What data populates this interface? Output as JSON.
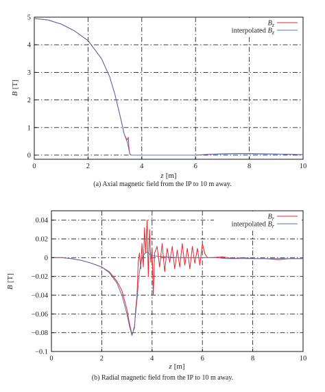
{
  "chart_data": [
    {
      "type": "line",
      "xlabel": "z [m]",
      "xlabel_var": "z",
      "xlabel_unit": "[m]",
      "ylabel": "B [T]",
      "ylabel_var": "B",
      "ylabel_unit": "[T]",
      "xlim": [
        0,
        10
      ],
      "ylim": [
        -0.15,
        5.0
      ],
      "x_ticks": [
        "0",
        "2",
        "4",
        "6",
        "8",
        "10"
      ],
      "y_ticks": [
        "0",
        "1",
        "2",
        "3",
        "4",
        "5"
      ],
      "y_tick_values": [
        0,
        1,
        2,
        3,
        4,
        5
      ],
      "grid": true,
      "legend_position": "top-right",
      "caption": "(a) Axial magnetic field from the IP to 10 m away.",
      "series": [
        {
          "name": "B_z",
          "legend_prefix": "",
          "legend_var": "B",
          "legend_sub": "z",
          "color": "#e8232a",
          "x": [
            0,
            0.5,
            1.0,
            1.5,
            2.0,
            2.5,
            2.8,
            3.0,
            3.2,
            3.35,
            3.45,
            3.5,
            3.52,
            3.55,
            3.6,
            3.7,
            4,
            5,
            6,
            6.5,
            7,
            7.5,
            8,
            8.5,
            9,
            9.5,
            10
          ],
          "y": [
            4.95,
            4.9,
            4.75,
            4.5,
            4.15,
            3.5,
            2.85,
            2.2,
            1.4,
            0.75,
            0.55,
            0.65,
            0.3,
            0.05,
            0.0,
            0.0,
            0.0,
            0.0,
            0.0,
            0.03,
            0.05,
            0.06,
            0.06,
            0.05,
            0.04,
            0.03,
            0.02
          ]
        },
        {
          "name": "interpolated B_z",
          "legend_prefix": "interpolated",
          "legend_var": "B",
          "legend_sub": "z",
          "color": "#5670b5",
          "x": [
            0,
            0.5,
            1.0,
            1.5,
            2.0,
            2.5,
            2.8,
            3.0,
            3.2,
            3.35,
            3.45,
            3.5,
            3.55,
            3.6,
            3.7,
            4,
            5,
            6,
            6.5,
            7,
            7.5,
            8,
            8.5,
            9,
            9.5,
            10
          ],
          "y": [
            4.95,
            4.9,
            4.75,
            4.5,
            4.15,
            3.5,
            2.85,
            2.2,
            1.4,
            0.75,
            0.5,
            0.3,
            0.05,
            0.0,
            0.0,
            0.0,
            0.0,
            0.0,
            0.03,
            0.04,
            0.05,
            0.05,
            0.04,
            0.04,
            0.03,
            0.02
          ]
        }
      ]
    },
    {
      "type": "line",
      "xlabel": "z [m]",
      "xlabel_var": "z",
      "xlabel_unit": "[m]",
      "ylabel": "B [T]",
      "ylabel_var": "B",
      "ylabel_unit": "[T]",
      "xlim": [
        0,
        10
      ],
      "ylim": [
        -0.1,
        0.05
      ],
      "x_ticks": [
        "0",
        "2",
        "4",
        "6",
        "8",
        "10"
      ],
      "y_ticks": [
        "0.04",
        "0.02",
        "0",
        "−0.02",
        "−0.04",
        "−0.06",
        "−0.08",
        "−0.1"
      ],
      "y_tick_values": [
        0.04,
        0.02,
        0,
        -0.02,
        -0.04,
        -0.06,
        -0.08,
        -0.1
      ],
      "grid": true,
      "legend_position": "top-right",
      "caption": "(b) Radial magnetic field from the IP to 10 m away.",
      "series": [
        {
          "name": "B_r",
          "legend_prefix": "",
          "legend_var": "B",
          "legend_sub": "r",
          "color": "#e8232a",
          "x": [
            0,
            0.4,
            0.8,
            1.2,
            1.6,
            2.0,
            2.3,
            2.6,
            2.8,
            3.0,
            3.1,
            3.2,
            3.3,
            3.35,
            3.4,
            3.45,
            3.5,
            3.55,
            3.6,
            3.65,
            3.7,
            3.75,
            3.8,
            3.85,
            3.9,
            3.95,
            4.0,
            4.05,
            4.1,
            4.2,
            4.3,
            4.4,
            4.5,
            4.6,
            4.7,
            4.8,
            4.9,
            5.0,
            5.1,
            5.2,
            5.3,
            5.4,
            5.5,
            5.6,
            5.7,
            5.8,
            5.9,
            6.0,
            6.1,
            6.2,
            6.4,
            6.8,
            7.2,
            7.6,
            8.0,
            8.5,
            9.0,
            9.5,
            10.0
          ],
          "y": [
            0.0,
            0.0,
            -0.001,
            -0.003,
            -0.006,
            -0.01,
            -0.015,
            -0.025,
            -0.035,
            -0.055,
            -0.07,
            -0.082,
            -0.075,
            -0.055,
            -0.04,
            -0.005,
            0.005,
            -0.012,
            0.015,
            -0.01,
            0.032,
            0.005,
            0.04,
            -0.02,
            0.03,
            -0.005,
            0.01,
            -0.04,
            0.005,
            0.012,
            -0.01,
            0.015,
            -0.015,
            0.01,
            -0.005,
            0.012,
            -0.012,
            0.008,
            -0.01,
            0.015,
            -0.008,
            0.01,
            -0.012,
            0.012,
            -0.006,
            0.01,
            -0.008,
            0.015,
            0.004,
            0.0,
            0.0,
            0.001,
            -0.001,
            0.0,
            -0.001,
            -0.001,
            -0.002,
            -0.001,
            -0.001
          ]
        },
        {
          "name": "interpolated B_r",
          "legend_prefix": "interpolated",
          "legend_var": "B",
          "legend_sub": "r",
          "color": "#5670b5",
          "x": [
            0,
            0.4,
            0.8,
            1.2,
            1.6,
            2.0,
            2.3,
            2.6,
            2.8,
            3.0,
            3.1,
            3.2,
            3.3,
            3.4,
            3.5,
            3.6,
            3.7,
            3.8,
            3.9,
            4.0,
            4.5,
            5.0,
            5.5,
            6.0,
            6.5,
            7.0,
            7.5,
            8.0,
            8.5,
            9.0,
            9.5,
            10.0
          ],
          "y": [
            0.0,
            0.0,
            -0.001,
            -0.003,
            -0.006,
            -0.01,
            -0.016,
            -0.027,
            -0.04,
            -0.06,
            -0.073,
            -0.083,
            -0.073,
            -0.045,
            -0.015,
            0.0,
            0.004,
            0.006,
            0.004,
            0.002,
            0.001,
            0.0,
            0.0,
            0.0,
            0.0,
            -0.001,
            -0.001,
            -0.001,
            -0.001,
            -0.001,
            -0.001,
            -0.001
          ]
        }
      ]
    }
  ]
}
